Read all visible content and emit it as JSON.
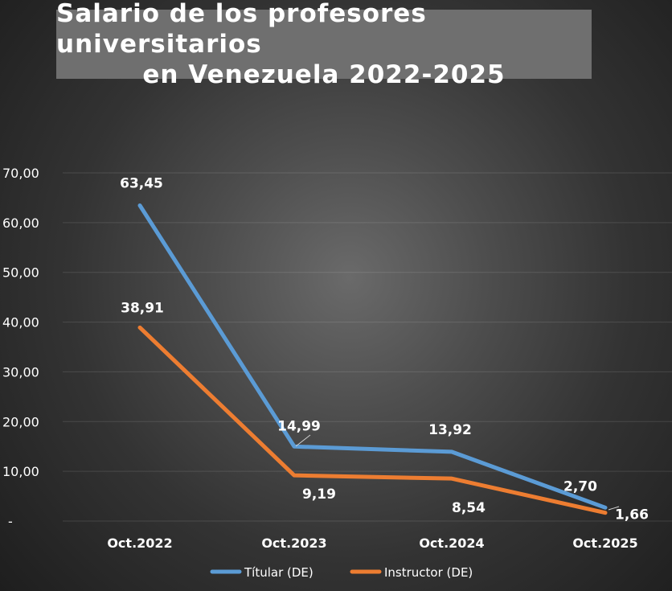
{
  "chart_data": {
    "type": "line",
    "title_lines": [
      "Salario de los profesores universitarios",
      "en Venezuela 2022-2025"
    ],
    "categories": [
      "Oct.2022",
      "Oct.2023",
      "Oct.2024",
      "Oct.2025"
    ],
    "series": [
      {
        "name": "Títular (DE)",
        "color": "#5b9bd5",
        "values": [
          63.45,
          14.99,
          13.92,
          2.7
        ],
        "labels": [
          "63,45",
          "14,99",
          "13,92",
          "2,70"
        ]
      },
      {
        "name": "Instructor (DE)",
        "color": "#ed7d31",
        "values": [
          38.91,
          9.19,
          8.54,
          1.66
        ],
        "labels": [
          "38,91",
          "9,19",
          "8,54",
          "1,66"
        ]
      }
    ],
    "yticks": [
      "-",
      "10,00",
      "20,00",
      "30,00",
      "40,00",
      "50,00",
      "60,00",
      "70,00"
    ],
    "ylim": [
      0,
      70
    ],
    "grid": true,
    "legend_position": "bottom"
  }
}
